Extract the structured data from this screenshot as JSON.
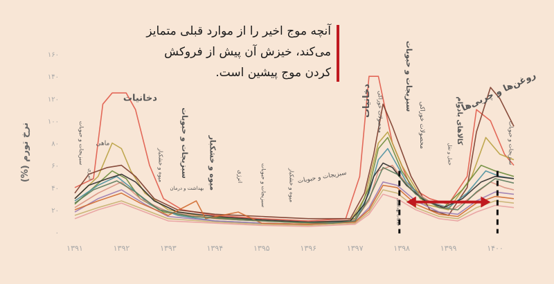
{
  "annotation": {
    "text": "آنچه موج اخیر را از موارد قبلی متمایز می‌کند، خیزش آن پیش از فروکش کردن موج پیشین است."
  },
  "colors": {
    "background": "#f8e6d6",
    "accent_red": "#c0191f",
    "tick_text": "#a8a8a8",
    "label_text": "#555555"
  },
  "chart_data": {
    "type": "line",
    "title": "",
    "ylabel": "نرخ تورم (%)",
    "xlabel": "",
    "xlim": [
      1391,
      1400.4
    ],
    "ylim": [
      0,
      165
    ],
    "y_ticks": [
      0,
      20,
      40,
      60,
      80,
      100,
      120,
      140,
      160
    ],
    "y_tick_labels": [
      "۰",
      "۲۰",
      "۴۰",
      "۶۰",
      "۸۰",
      "۱۰۰",
      "۱۲۰",
      "۱۴۰",
      "۱۶۰"
    ],
    "x_ticks": [
      1391,
      1392,
      1393,
      1394,
      1395,
      1396,
      1397,
      1398,
      1399,
      1400
    ],
    "x_tick_labels": [
      "۱۳۹۱",
      "۱۳۹۲",
      "۱۳۹۳",
      "۱۳۹۴",
      "۱۳۹۵",
      "۱۳۹۶",
      "۱۳۹۷",
      "۱۳۹۸",
      "۱۳۹۹",
      "۱۴۰۰"
    ],
    "grid": false,
    "legend": "none",
    "series": [
      {
        "color": "#e05a4a",
        "points": [
          [
            1391,
            40
          ],
          [
            1391.4,
            48
          ],
          [
            1391.6,
            115
          ],
          [
            1391.8,
            125
          ],
          [
            1392.1,
            125
          ],
          [
            1392.3,
            110
          ],
          [
            1392.6,
            60
          ],
          [
            1392.9,
            30
          ],
          [
            1393.3,
            20
          ],
          [
            1394,
            15
          ],
          [
            1395,
            12
          ],
          [
            1396,
            10
          ],
          [
            1396.8,
            12
          ],
          [
            1397.1,
            50
          ],
          [
            1397.3,
            140
          ],
          [
            1397.5,
            140
          ],
          [
            1397.8,
            80
          ],
          [
            1398.2,
            40
          ],
          [
            1398.6,
            30
          ],
          [
            1399,
            25
          ],
          [
            1399.4,
            50
          ],
          [
            1399.6,
            110
          ],
          [
            1399.9,
            100
          ],
          [
            1400.2,
            70
          ],
          [
            1400.4,
            60
          ]
        ]
      },
      {
        "color": "#b8a040",
        "points": [
          [
            1391,
            30
          ],
          [
            1391.5,
            50
          ],
          [
            1391.8,
            80
          ],
          [
            1392,
            75
          ],
          [
            1392.2,
            55
          ],
          [
            1392.5,
            35
          ],
          [
            1393,
            20
          ],
          [
            1394,
            12
          ],
          [
            1395,
            10
          ],
          [
            1396,
            8
          ],
          [
            1396.9,
            10
          ],
          [
            1397.2,
            30
          ],
          [
            1397.5,
            80
          ],
          [
            1397.7,
            90
          ],
          [
            1398,
            60
          ],
          [
            1398.5,
            25
          ],
          [
            1399,
            20
          ],
          [
            1399.5,
            50
          ],
          [
            1399.8,
            85
          ],
          [
            1400.1,
            70
          ],
          [
            1400.4,
            65
          ]
        ]
      },
      {
        "color": "#7a3a2a",
        "points": [
          [
            1391,
            35
          ],
          [
            1391.3,
            52
          ],
          [
            1391.7,
            58
          ],
          [
            1392,
            60
          ],
          [
            1392.3,
            50
          ],
          [
            1392.7,
            30
          ],
          [
            1393.2,
            20
          ],
          [
            1394,
            16
          ],
          [
            1395,
            14
          ],
          [
            1396,
            12
          ],
          [
            1396.9,
            12
          ],
          [
            1397.2,
            35
          ],
          [
            1397.4,
            70
          ],
          [
            1397.6,
            115
          ],
          [
            1397.8,
            95
          ],
          [
            1398.2,
            50
          ],
          [
            1398.6,
            20
          ],
          [
            1399,
            15
          ],
          [
            1399.4,
            40
          ],
          [
            1399.6,
            90
          ],
          [
            1399.9,
            130
          ],
          [
            1400.1,
            120
          ],
          [
            1400.4,
            95
          ]
        ]
      },
      {
        "color": "#6b8b3a",
        "points": [
          [
            1391,
            25
          ],
          [
            1391.4,
            40
          ],
          [
            1391.8,
            55
          ],
          [
            1392.1,
            48
          ],
          [
            1392.4,
            30
          ],
          [
            1392.9,
            18
          ],
          [
            1393.5,
            14
          ],
          [
            1394.5,
            12
          ],
          [
            1395.5,
            9
          ],
          [
            1396.5,
            8
          ],
          [
            1397,
            12
          ],
          [
            1397.3,
            40
          ],
          [
            1397.5,
            75
          ],
          [
            1397.7,
            85
          ],
          [
            1398,
            55
          ],
          [
            1398.4,
            30
          ],
          [
            1398.9,
            22
          ],
          [
            1399.3,
            38
          ],
          [
            1399.7,
            60
          ],
          [
            1400,
            55
          ],
          [
            1400.4,
            50
          ]
        ]
      },
      {
        "color": "#4a90a0",
        "points": [
          [
            1391,
            28
          ],
          [
            1391.5,
            42
          ],
          [
            1391.9,
            50
          ],
          [
            1392.2,
            40
          ],
          [
            1392.6,
            25
          ],
          [
            1393.2,
            15
          ],
          [
            1394,
            10
          ],
          [
            1395,
            8
          ],
          [
            1396,
            7
          ],
          [
            1397,
            10
          ],
          [
            1397.3,
            35
          ],
          [
            1397.5,
            65
          ],
          [
            1397.7,
            75
          ],
          [
            1398.1,
            45
          ],
          [
            1398.5,
            28
          ],
          [
            1399,
            22
          ],
          [
            1399.4,
            35
          ],
          [
            1399.8,
            55
          ],
          [
            1400.1,
            50
          ],
          [
            1400.4,
            48
          ]
        ]
      },
      {
        "color": "#d89080",
        "points": [
          [
            1391,
            22
          ],
          [
            1391.5,
            35
          ],
          [
            1392,
            45
          ],
          [
            1392.4,
            30
          ],
          [
            1393,
            18
          ],
          [
            1394,
            12
          ],
          [
            1395,
            10
          ],
          [
            1396,
            9
          ],
          [
            1397,
            11
          ],
          [
            1397.3,
            28
          ],
          [
            1397.5,
            55
          ],
          [
            1397.8,
            60
          ],
          [
            1398.2,
            38
          ],
          [
            1398.7,
            25
          ],
          [
            1399.1,
            20
          ],
          [
            1399.5,
            32
          ],
          [
            1399.9,
            45
          ],
          [
            1400.2,
            40
          ],
          [
            1400.4,
            38
          ]
        ]
      },
      {
        "color": "#2b2b2b",
        "points": [
          [
            1391,
            30
          ],
          [
            1391.3,
            42
          ],
          [
            1391.7,
            48
          ],
          [
            1392,
            52
          ],
          [
            1392.3,
            45
          ],
          [
            1392.7,
            28
          ],
          [
            1393.2,
            18
          ],
          [
            1394,
            14
          ],
          [
            1395,
            11
          ],
          [
            1396,
            9
          ],
          [
            1396.9,
            10
          ],
          [
            1397.2,
            25
          ],
          [
            1397.4,
            50
          ],
          [
            1397.6,
            62
          ],
          [
            1397.8,
            58
          ],
          [
            1398.1,
            42
          ],
          [
            1398.5,
            28
          ],
          [
            1398.9,
            22
          ],
          [
            1399.3,
            30
          ],
          [
            1399.7,
            45
          ],
          [
            1400,
            50
          ],
          [
            1400.4,
            48
          ]
        ]
      },
      {
        "color": "#9a7ab0",
        "points": [
          [
            1391,
            18
          ],
          [
            1391.5,
            30
          ],
          [
            1392,
            38
          ],
          [
            1392.5,
            25
          ],
          [
            1393,
            14
          ],
          [
            1394,
            10
          ],
          [
            1395,
            8
          ],
          [
            1396,
            7
          ],
          [
            1397,
            9
          ],
          [
            1397.3,
            22
          ],
          [
            1397.6,
            45
          ],
          [
            1397.9,
            42
          ],
          [
            1398.3,
            28
          ],
          [
            1398.8,
            18
          ],
          [
            1399.2,
            16
          ],
          [
            1399.6,
            28
          ],
          [
            1400,
            36
          ],
          [
            1400.4,
            34
          ]
        ]
      },
      {
        "color": "#c7b070",
        "points": [
          [
            1391,
            15
          ],
          [
            1391.5,
            22
          ],
          [
            1392,
            28
          ],
          [
            1392.5,
            20
          ],
          [
            1393,
            12
          ],
          [
            1394,
            9
          ],
          [
            1395,
            7
          ],
          [
            1396,
            6
          ],
          [
            1397,
            8
          ],
          [
            1397.3,
            18
          ],
          [
            1397.6,
            38
          ],
          [
            1397.9,
            35
          ],
          [
            1398.3,
            22
          ],
          [
            1398.8,
            14
          ],
          [
            1399.2,
            12
          ],
          [
            1399.6,
            22
          ],
          [
            1400,
            28
          ],
          [
            1400.4,
            26
          ]
        ]
      },
      {
        "color": "#d06a30",
        "points": [
          [
            1391,
            20
          ],
          [
            1391.5,
            28
          ],
          [
            1392,
            35
          ],
          [
            1392.4,
            26
          ],
          [
            1393,
            15
          ],
          [
            1393.6,
            28
          ],
          [
            1393.8,
            12
          ],
          [
            1394.5,
            18
          ],
          [
            1395,
            8
          ],
          [
            1396,
            7
          ],
          [
            1397,
            9
          ],
          [
            1397.3,
            20
          ],
          [
            1397.6,
            42
          ],
          [
            1397.9,
            40
          ],
          [
            1398.3,
            25
          ],
          [
            1398.8,
            16
          ],
          [
            1399.2,
            14
          ],
          [
            1399.6,
            26
          ],
          [
            1400,
            32
          ],
          [
            1400.4,
            30
          ]
        ]
      },
      {
        "color": "#5a7a5a",
        "points": [
          [
            1391,
            26
          ],
          [
            1391.4,
            38
          ],
          [
            1391.9,
            46
          ],
          [
            1392.3,
            36
          ],
          [
            1392.8,
            20
          ],
          [
            1393.5,
            14
          ],
          [
            1394.5,
            11
          ],
          [
            1395.5,
            9
          ],
          [
            1396.5,
            8
          ],
          [
            1397,
            10
          ],
          [
            1397.3,
            30
          ],
          [
            1397.6,
            58
          ],
          [
            1397.9,
            52
          ],
          [
            1398.3,
            34
          ],
          [
            1398.8,
            22
          ],
          [
            1399.2,
            20
          ],
          [
            1399.6,
            36
          ],
          [
            1400,
            48
          ],
          [
            1400.4,
            44
          ]
        ]
      },
      {
        "color": "#e8a0a0",
        "points": [
          [
            1391,
            12
          ],
          [
            1391.5,
            20
          ],
          [
            1392,
            26
          ],
          [
            1392.5,
            18
          ],
          [
            1393,
            10
          ],
          [
            1394,
            8
          ],
          [
            1395,
            6
          ],
          [
            1396,
            5
          ],
          [
            1397,
            7
          ],
          [
            1397.3,
            16
          ],
          [
            1397.6,
            34
          ],
          [
            1397.9,
            30
          ],
          [
            1398.3,
            20
          ],
          [
            1398.8,
            12
          ],
          [
            1399.2,
            10
          ],
          [
            1399.6,
            18
          ],
          [
            1400,
            24
          ],
          [
            1400.4,
            22
          ]
        ]
      }
    ],
    "labels": [
      {
        "text": "دخانیات",
        "x": 1392.4,
        "y": 118,
        "rotate": 0,
        "size": 13,
        "weight": "bold"
      },
      {
        "text": "دخانیات",
        "x": 1397.3,
        "y": 118,
        "rotate": -90,
        "size": 13,
        "weight": "bold"
      },
      {
        "text": "سبزیجات و حبوبات",
        "x": 1393.3,
        "y": 80,
        "rotate": 90,
        "size": 11,
        "weight": "bold"
      },
      {
        "text": "سبزیجات و حبوبات",
        "x": 1398.1,
        "y": 140,
        "rotate": 90,
        "size": 11,
        "weight": "bold"
      },
      {
        "text": "سبزیجات و حبوبات",
        "x": 1396.3,
        "y": 48,
        "rotate": -10,
        "size": 9,
        "weight": "normal"
      },
      {
        "text": "سبزیجات و حبوبات",
        "x": 1395,
        "y": 42,
        "rotate": 90,
        "size": 8,
        "weight": "normal"
      },
      {
        "text": "سبزیجات و حبوبات",
        "x": 1391.1,
        "y": 80,
        "rotate": 90,
        "size": 8,
        "weight": "normal"
      },
      {
        "text": "سبزیجات و حبوبات",
        "x": 1400.3,
        "y": 80,
        "rotate": 90,
        "size": 8,
        "weight": "normal"
      },
      {
        "text": "میوه و خشکبار",
        "x": 1393.9,
        "y": 62,
        "rotate": 90,
        "size": 11,
        "weight": "bold"
      },
      {
        "text": "میوه و خشکبار",
        "x": 1392.8,
        "y": 60,
        "rotate": 90,
        "size": 8,
        "weight": "normal"
      },
      {
        "text": "میوه و خشکبار",
        "x": 1395.6,
        "y": 42,
        "rotate": 90,
        "size": 8,
        "weight": "normal"
      },
      {
        "text": "روغن‌ها و چربی‌ها",
        "x": 1400.1,
        "y": 124,
        "rotate": -25,
        "size": 13,
        "weight": "bold"
      },
      {
        "text": "کالاهای بادوام",
        "x": 1399.2,
        "y": 100,
        "rotate": 90,
        "size": 10,
        "weight": "bold"
      },
      {
        "text": "محصولات خوراکی",
        "x": 1398.4,
        "y": 96,
        "rotate": 90,
        "size": 9,
        "weight": "normal"
      },
      {
        "text": "محصولات خوراکی",
        "x": 1397.5,
        "y": 108,
        "rotate": 90,
        "size": 8,
        "weight": "normal"
      },
      {
        "text": "ماهی",
        "x": 1391.6,
        "y": 78,
        "rotate": 0,
        "size": 9,
        "weight": "normal"
      },
      {
        "text": "انرژی",
        "x": 1394.5,
        "y": 50,
        "rotate": 90,
        "size": 8,
        "weight": "normal"
      },
      {
        "text": "بهداشت و درمان",
        "x": 1393.4,
        "y": 38,
        "rotate": 0,
        "size": 7,
        "weight": "normal"
      },
      {
        "text": "انرژی",
        "x": 1391.3,
        "y": 52,
        "rotate": 90,
        "size": 7,
        "weight": "normal"
      },
      {
        "text": "حمل و نقل",
        "x": 1399,
        "y": 70,
        "rotate": 90,
        "size": 7,
        "weight": "normal"
      },
      {
        "text": "خدمات بهداشتی",
        "x": 1397.9,
        "y": 18,
        "rotate": 90,
        "size": 6,
        "weight": "normal"
      }
    ],
    "dashed_markers_x": [
      1397.95,
      1400.05
    ],
    "span_arrow": {
      "x_start": 1397.95,
      "x_end": 1400.05,
      "y": 27
    }
  }
}
